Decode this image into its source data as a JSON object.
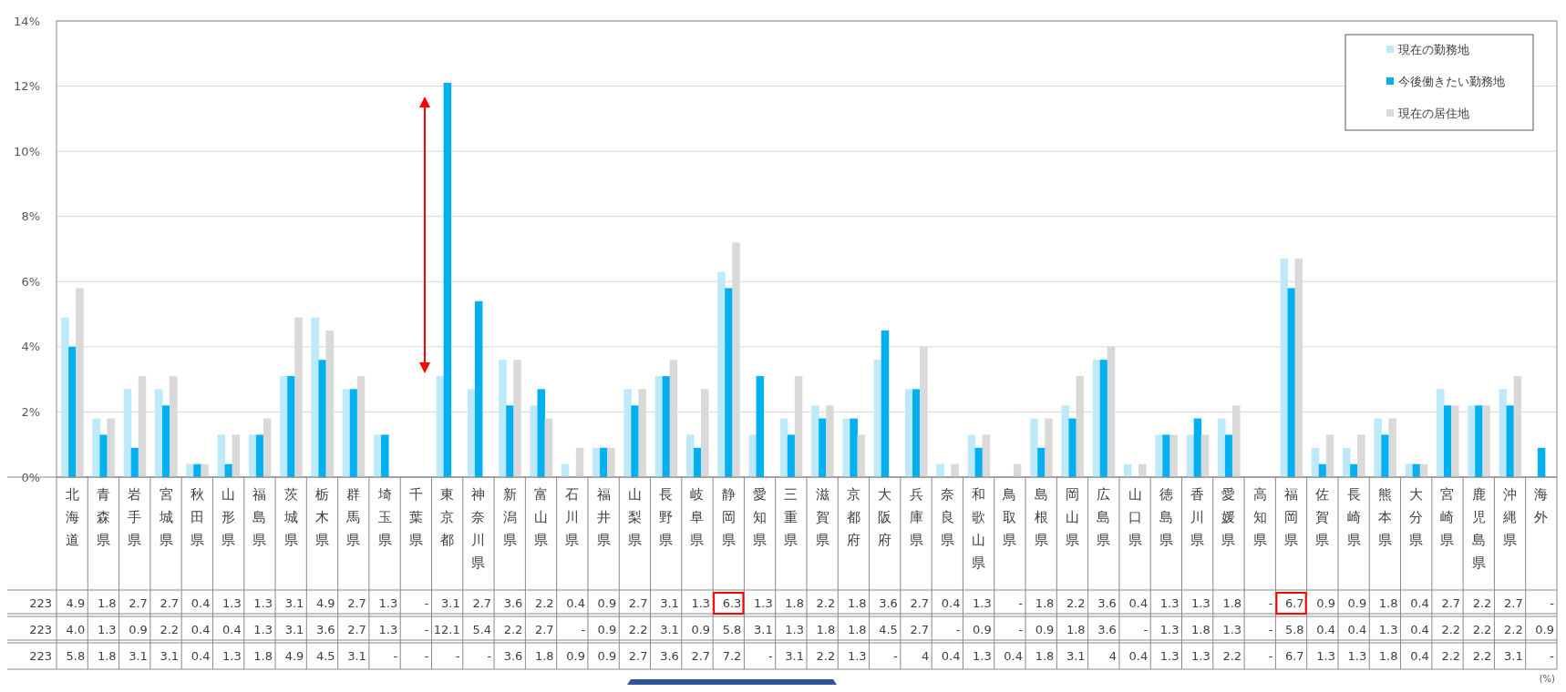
{
  "chart_data": {
    "type": "bar",
    "categories": [
      "北海道",
      "青森県",
      "岩手県",
      "宮城県",
      "秋田県",
      "山形県",
      "福島県",
      "茨城県",
      "栃木県",
      "群馬県",
      "埼玉県",
      "千葉県",
      "東京都",
      "神奈川県",
      "新潟県",
      "富山県",
      "石川県",
      "福井県",
      "山梨県",
      "長野県",
      "岐阜県",
      "静岡県",
      "愛知県",
      "三重県",
      "滋賀県",
      "京都府",
      "大阪府",
      "兵庫県",
      "奈良県",
      "和歌山県",
      "鳥取県",
      "島根県",
      "岡山県",
      "広島県",
      "山口県",
      "徳島県",
      "香川県",
      "愛媛県",
      "高知県",
      "福岡県",
      "佐賀県",
      "長崎県",
      "熊本県",
      "大分県",
      "宮崎県",
      "鹿児島県",
      "沖縄県",
      "海外"
    ],
    "series": [
      {
        "name": "現在の勤務地",
        "color": "#bde9fb",
        "values": [
          4.9,
          1.8,
          2.7,
          2.7,
          0.4,
          1.3,
          1.3,
          3.1,
          4.9,
          2.7,
          1.3,
          null,
          3.1,
          2.7,
          3.6,
          2.2,
          0.4,
          0.9,
          2.7,
          3.1,
          1.3,
          6.3,
          1.3,
          1.8,
          2.2,
          1.8,
          3.6,
          2.7,
          0.4,
          1.3,
          null,
          1.8,
          2.2,
          3.6,
          0.4,
          1.3,
          1.3,
          1.8,
          null,
          6.7,
          0.9,
          0.9,
          1.8,
          0.4,
          2.7,
          2.2,
          2.7,
          null
        ],
        "value_labels": [
          "4.9",
          "1.8",
          "2.7",
          "2.7",
          "0.4",
          "1.3",
          "1.3",
          "3.1",
          "4.9",
          "2.7",
          "1.3",
          "-",
          "3.1",
          "2.7",
          "3.6",
          "2.2",
          "0.4",
          "0.9",
          "2.7",
          "3.1",
          "1.3",
          "6.3",
          "1.3",
          "1.8",
          "2.2",
          "1.8",
          "3.6",
          "2.7",
          "0.4",
          "1.3",
          "-",
          "1.8",
          "2.2",
          "3.6",
          "0.4",
          "1.3",
          "1.3",
          "1.8",
          "-",
          "6.7",
          "0.9",
          "0.9",
          "1.8",
          "0.4",
          "2.7",
          "2.2",
          "2.7",
          "-"
        ]
      },
      {
        "name": "今後働きたい勤務地",
        "color": "#00b0f0",
        "values": [
          4.0,
          1.3,
          0.9,
          2.2,
          0.4,
          0.4,
          1.3,
          3.1,
          3.6,
          2.7,
          1.3,
          null,
          12.1,
          5.4,
          2.2,
          2.7,
          null,
          0.9,
          2.2,
          3.1,
          0.9,
          5.8,
          3.1,
          1.3,
          1.8,
          1.8,
          4.5,
          2.7,
          null,
          0.9,
          null,
          0.9,
          1.8,
          3.6,
          null,
          1.3,
          1.8,
          1.3,
          null,
          5.8,
          0.4,
          0.4,
          1.3,
          0.4,
          2.2,
          2.2,
          2.2,
          0.9
        ],
        "value_labels": [
          "4.0",
          "1.3",
          "0.9",
          "2.2",
          "0.4",
          "0.4",
          "1.3",
          "3.1",
          "3.6",
          "2.7",
          "1.3",
          "-",
          "12.1",
          "5.4",
          "2.2",
          "2.7",
          "-",
          "0.9",
          "2.2",
          "3.1",
          "0.9",
          "5.8",
          "3.1",
          "1.3",
          "1.8",
          "1.8",
          "4.5",
          "2.7",
          "-",
          "0.9",
          "-",
          "0.9",
          "1.8",
          "3.6",
          "-",
          "1.3",
          "1.8",
          "1.3",
          "-",
          "5.8",
          "0.4",
          "0.4",
          "1.3",
          "0.4",
          "2.2",
          "2.2",
          "2.2",
          "0.9"
        ]
      },
      {
        "name": "現在の居住地",
        "color": "#d9d9d9",
        "values": [
          5.8,
          1.8,
          3.1,
          3.1,
          0.4,
          1.3,
          1.8,
          4.9,
          4.5,
          3.1,
          null,
          null,
          null,
          null,
          3.6,
          1.8,
          0.9,
          0.9,
          2.7,
          3.6,
          2.7,
          7.2,
          null,
          3.1,
          2.2,
          1.3,
          null,
          4,
          0.4,
          1.3,
          0.4,
          1.8,
          3.1,
          4,
          0.4,
          1.3,
          1.3,
          2.2,
          null,
          6.7,
          1.3,
          1.3,
          1.8,
          0.4,
          2.2,
          2.2,
          3.1,
          null
        ],
        "value_labels": [
          "5.8",
          "1.8",
          "3.1",
          "3.1",
          "0.4",
          "1.3",
          "1.8",
          "4.9",
          "4.5",
          "3.1",
          "-",
          "-",
          "-",
          "-",
          "3.6",
          "1.8",
          "0.9",
          "0.9",
          "2.7",
          "3.6",
          "2.7",
          "7.2",
          "-",
          "3.1",
          "2.2",
          "1.3",
          "-",
          "4",
          "0.4",
          "1.3",
          "0.4",
          "1.8",
          "3.1",
          "4",
          "0.4",
          "1.3",
          "1.3",
          "2.2",
          "-",
          "6.7",
          "1.3",
          "1.3",
          "1.8",
          "0.4",
          "2.2",
          "2.2",
          "3.1",
          "-"
        ]
      }
    ],
    "ylim": [
      0,
      14
    ],
    "yticks": [
      {
        "value": 0,
        "label": "0%"
      },
      {
        "value": 2,
        "label": "2%"
      },
      {
        "value": 4,
        "label": "4%"
      },
      {
        "value": 6,
        "label": "6%"
      },
      {
        "value": 8,
        "label": "8%"
      },
      {
        "value": 10,
        "label": "10%"
      },
      {
        "value": 12,
        "label": "12%"
      },
      {
        "value": 14,
        "label": "14%"
      }
    ],
    "grid": "y",
    "legend": "top right",
    "annotations": [
      "223",
      "223",
      "223",
      "(%)"
    ]
  }
}
